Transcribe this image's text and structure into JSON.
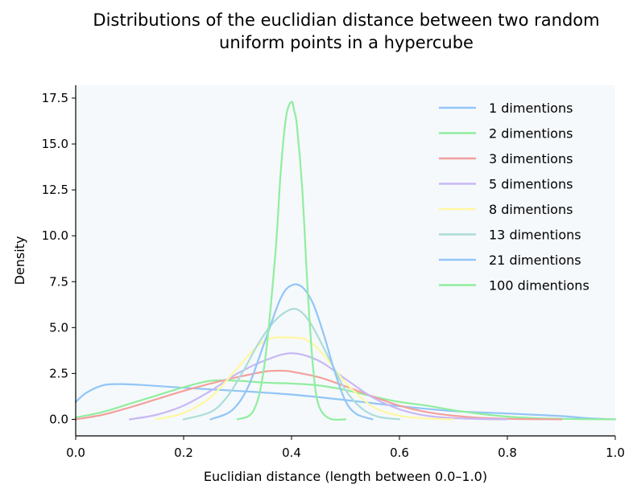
{
  "chart_data": {
    "type": "line",
    "title_lines": [
      "Distributions of the euclidian distance between two random",
      "uniform points in a hypercube"
    ],
    "xlabel": "Euclidian distance (length between 0.0–1.0)",
    "ylabel": "Density",
    "xlim": [
      0.0,
      1.0
    ],
    "ylim": [
      -0.9,
      18.2
    ],
    "xticks": [
      0.0,
      0.2,
      0.4,
      0.6,
      0.8,
      1.0
    ],
    "xtick_labels": [
      "0.0",
      "0.2",
      "0.4",
      "0.6",
      "0.8",
      "1.0"
    ],
    "yticks": [
      0.0,
      2.5,
      5.0,
      7.5,
      10.0,
      12.5,
      15.0,
      17.5
    ],
    "ytick_labels": [
      "0.0",
      "2.5",
      "5.0",
      "7.5",
      "10.0",
      "12.5",
      "15.0",
      "17.5"
    ],
    "grid": false,
    "legend_position": "top-right",
    "plot_background": "#f5f9fc",
    "series": [
      {
        "name": "1 dimentions",
        "color": "#92c5f7",
        "x": [
          0.0,
          0.02,
          0.05,
          0.08,
          0.12,
          0.2,
          0.3,
          0.4,
          0.5,
          0.6,
          0.7,
          0.8,
          0.9,
          0.95,
          1.0
        ],
        "y": [
          0.95,
          1.45,
          1.85,
          1.92,
          1.88,
          1.72,
          1.55,
          1.35,
          1.05,
          0.72,
          0.45,
          0.32,
          0.18,
          0.06,
          0.0
        ]
      },
      {
        "name": "2 dimentions",
        "color": "#90ee9e",
        "x": [
          0.0,
          0.05,
          0.1,
          0.15,
          0.2,
          0.25,
          0.3,
          0.35,
          0.4,
          0.45,
          0.5,
          0.55,
          0.6,
          0.65,
          0.7,
          0.75,
          0.8,
          0.85,
          0.9,
          0.95,
          1.0
        ],
        "y": [
          0.1,
          0.4,
          0.85,
          1.3,
          1.75,
          2.1,
          2.1,
          2.0,
          1.95,
          1.85,
          1.6,
          1.25,
          0.95,
          0.75,
          0.5,
          0.3,
          0.15,
          0.07,
          0.03,
          0.01,
          0.0
        ]
      },
      {
        "name": "3 dimentions",
        "color": "#f4a09c",
        "x": [
          0.0,
          0.05,
          0.1,
          0.15,
          0.2,
          0.25,
          0.3,
          0.35,
          0.38,
          0.4,
          0.45,
          0.5,
          0.55,
          0.6,
          0.65,
          0.7,
          0.75,
          0.8,
          0.85,
          0.9
        ],
        "y": [
          0.0,
          0.25,
          0.65,
          1.1,
          1.55,
          1.95,
          2.3,
          2.6,
          2.65,
          2.6,
          2.3,
          1.8,
          1.25,
          0.75,
          0.4,
          0.2,
          0.08,
          0.03,
          0.01,
          0.0
        ]
      },
      {
        "name": "5 dimentions",
        "color": "#c8b8f5",
        "x": [
          0.1,
          0.15,
          0.2,
          0.25,
          0.3,
          0.35,
          0.4,
          0.45,
          0.5,
          0.55,
          0.6,
          0.65,
          0.7,
          0.75,
          0.8
        ],
        "y": [
          0.0,
          0.25,
          0.75,
          1.55,
          2.5,
          3.2,
          3.6,
          3.2,
          2.2,
          1.2,
          0.55,
          0.2,
          0.07,
          0.02,
          0.0
        ]
      },
      {
        "name": "8 dimentions",
        "color": "#fff7a0",
        "x": [
          0.15,
          0.2,
          0.25,
          0.3,
          0.33,
          0.36,
          0.4,
          0.43,
          0.46,
          0.5,
          0.55,
          0.6,
          0.65,
          0.7
        ],
        "y": [
          0.0,
          0.35,
          1.2,
          2.8,
          3.8,
          4.4,
          4.45,
          4.3,
          3.5,
          2.0,
          0.7,
          0.2,
          0.05,
          0.0
        ]
      },
      {
        "name": "13 dimentions",
        "color": "#acdcd8",
        "x": [
          0.2,
          0.25,
          0.28,
          0.31,
          0.34,
          0.37,
          0.4,
          0.42,
          0.44,
          0.47,
          0.5,
          0.53,
          0.56,
          0.6
        ],
        "y": [
          0.0,
          0.4,
          1.2,
          2.6,
          4.2,
          5.4,
          6.0,
          5.8,
          5.0,
          3.3,
          1.6,
          0.6,
          0.15,
          0.0
        ]
      },
      {
        "name": "21 dimentions",
        "color": "#92c5f7",
        "x": [
          0.25,
          0.29,
          0.32,
          0.35,
          0.38,
          0.4,
          0.42,
          0.44,
          0.46,
          0.48,
          0.5,
          0.52,
          0.55
        ],
        "y": [
          0.0,
          0.5,
          1.8,
          4.2,
          6.6,
          7.3,
          7.2,
          6.3,
          4.6,
          2.6,
          1.0,
          0.3,
          0.0
        ]
      },
      {
        "name": "100 dimentions",
        "color": "#90ee9e",
        "x": [
          0.3,
          0.33,
          0.35,
          0.37,
          0.38,
          0.39,
          0.4,
          0.405,
          0.41,
          0.42,
          0.43,
          0.44,
          0.45,
          0.47,
          0.5
        ],
        "y": [
          0.0,
          0.5,
          3.0,
          9.0,
          13.5,
          16.5,
          17.3,
          16.8,
          16.0,
          12.5,
          7.0,
          2.8,
          0.8,
          0.05,
          0.0
        ]
      }
    ]
  }
}
